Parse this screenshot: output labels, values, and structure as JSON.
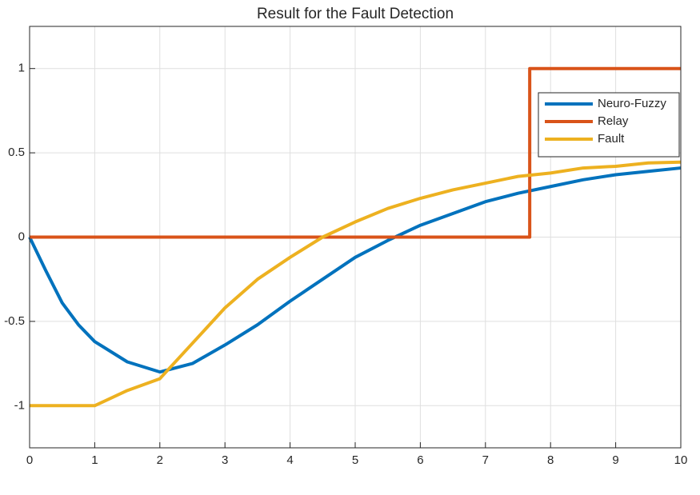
{
  "chart_data": {
    "type": "line",
    "title": "Result for the Fault Detection",
    "xlim": [
      0,
      10
    ],
    "xticks": [
      0,
      1,
      2,
      3,
      4,
      5,
      6,
      7,
      8,
      9,
      10
    ],
    "ylim": [
      -1.25,
      1.25
    ],
    "yticks": [
      -1,
      -0.5,
      0,
      0.5,
      1
    ],
    "grid": true,
    "legend": "upper right",
    "series": [
      {
        "name": "Neuro-Fuzzy",
        "color": "#0072BD",
        "x": [
          0,
          0.25,
          0.5,
          0.75,
          1,
          1.5,
          2,
          2.5,
          3,
          3.5,
          4,
          4.5,
          5,
          5.5,
          6,
          6.5,
          7,
          7.5,
          8,
          8.5,
          9,
          9.5,
          10
        ],
        "values": [
          0,
          -0.2,
          -0.39,
          -0.52,
          -0.62,
          -0.74,
          -0.8,
          -0.75,
          -0.64,
          -0.52,
          -0.38,
          -0.25,
          -0.12,
          -0.02,
          0.07,
          0.14,
          0.21,
          0.26,
          0.3,
          0.34,
          0.37,
          0.39,
          0.41
        ]
      },
      {
        "name": "Relay",
        "color": "#D95319",
        "x": [
          0,
          7.68,
          7.68,
          10
        ],
        "values": [
          0,
          0,
          1,
          1
        ]
      },
      {
        "name": "Fault",
        "color": "#EDB120",
        "x": [
          0,
          1,
          1.5,
          2,
          2.5,
          3,
          3.5,
          4,
          4.5,
          5,
          5.5,
          6,
          6.5,
          7,
          7.5,
          8,
          8.5,
          9,
          9.5,
          10
        ],
        "values": [
          -1,
          -1,
          -0.91,
          -0.84,
          -0.63,
          -0.42,
          -0.25,
          -0.12,
          0,
          0.09,
          0.17,
          0.23,
          0.28,
          0.32,
          0.36,
          0.38,
          0.41,
          0.42,
          0.44,
          0.445
        ]
      }
    ]
  }
}
